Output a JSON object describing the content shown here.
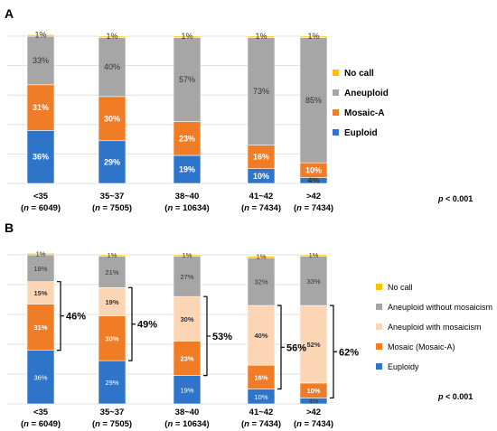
{
  "chart_data": [
    {
      "type": "bar",
      "stacked": true,
      "panel_label": "A",
      "categories": [
        "<35",
        "35~37",
        "38~40",
        "41~42",
        ">42"
      ],
      "category_n": [
        "6049",
        "7505",
        "10634",
        "7434",
        "7434"
      ],
      "n_prefix": "(",
      "n_italic": "n",
      "n_eq": " = ",
      "n_suffix": ")",
      "series": [
        {
          "name": "Euploid",
          "color": "#2E75C9",
          "values": [
            36,
            29,
            19,
            10,
            4
          ],
          "labels": [
            "36%",
            "29%",
            "19%",
            "10%",
            "4%"
          ]
        },
        {
          "name": "Mosaic-A",
          "color": "#F07C26",
          "values": [
            31,
            30,
            23,
            16,
            10
          ],
          "labels": [
            "31%",
            "30%",
            "23%",
            "16%",
            "10%"
          ]
        },
        {
          "name": "Aneuploid",
          "color": "#A6A6A6",
          "values": [
            33,
            40,
            57,
            73,
            85
          ],
          "labels": [
            "33%",
            "40%",
            "57%",
            "73%",
            "85%"
          ]
        },
        {
          "name": "No call",
          "color": "#FFC000",
          "values": [
            1,
            1,
            1,
            1,
            1
          ],
          "labels": [
            "1%",
            "1%",
            "1%",
            "1%",
            "1%"
          ]
        }
      ],
      "ylim": [
        0,
        100
      ],
      "grid": true,
      "legend_position": "right",
      "pvalue": {
        "italic": "p",
        "text": " < 0.001"
      }
    },
    {
      "type": "bar",
      "stacked": true,
      "panel_label": "B",
      "categories": [
        "<35",
        "35~37",
        "38~40",
        "41~42",
        ">42"
      ],
      "category_n": [
        "6049",
        "7505",
        "10634",
        "7434",
        "7434"
      ],
      "n_prefix": "(",
      "n_italic": "n",
      "n_eq": " = ",
      "n_suffix": ")",
      "series": [
        {
          "name": "Euploidy",
          "color": "#2E75C9",
          "values": [
            36,
            29,
            19,
            10,
            4
          ],
          "labels": [
            "36%",
            "29%",
            "19%",
            "10%",
            "4%"
          ]
        },
        {
          "name": "Mosaic (Mosaic-A)",
          "color": "#F07C26",
          "values": [
            31,
            30,
            23,
            16,
            10
          ],
          "labels": [
            "31%",
            "30%",
            "23%",
            "16%",
            "10%"
          ]
        },
        {
          "name": "Aneuploid with mosaicism",
          "color": "#FCD5B5",
          "values": [
            15,
            19,
            30,
            40,
            52
          ],
          "labels": [
            "15%",
            "19%",
            "30%",
            "40%",
            "52%"
          ]
        },
        {
          "name": "Aneuploid without mosaicism",
          "color": "#A6A6A6",
          "values": [
            18,
            21,
            27,
            32,
            33
          ],
          "labels": [
            "18%",
            "21%",
            "27%",
            "32%",
            "33%"
          ]
        },
        {
          "name": "No call",
          "color": "#FFC000",
          "values": [
            1,
            1,
            1,
            1,
            1
          ],
          "labels": [
            "1%",
            "1%",
            "1%",
            "1%",
            "1%"
          ]
        }
      ],
      "bracket_labels": [
        "46%",
        "49%",
        "53%",
        "56%",
        "62%"
      ],
      "ylim": [
        0,
        100
      ],
      "grid": true,
      "legend_position": "right",
      "pvalue": {
        "italic": "p",
        "text": " < 0.001"
      }
    }
  ]
}
